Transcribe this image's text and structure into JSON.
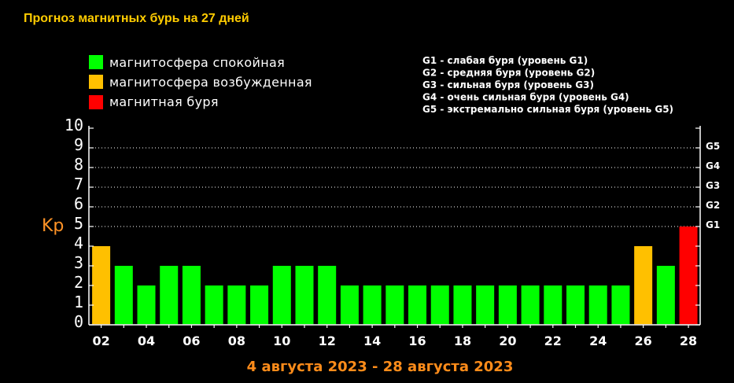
{
  "colors": {
    "title": "#ffcc00",
    "axis_title": "#ff8c1a",
    "ylabel": "#ff9326",
    "text": "#ffffff",
    "background": "#000000"
  },
  "chart_data": {
    "type": "bar",
    "title": "Прогноз магнитных бурь на 27 дней",
    "ylabel": "Kp",
    "xlabel": "4 августа 2023 - 28 августа 2023",
    "ylim": [
      0,
      10
    ],
    "y_tick_labels": [
      "0",
      "1",
      "2",
      "3",
      "4",
      "5",
      "6",
      "7",
      "8",
      "9",
      "10"
    ],
    "x": [
      2,
      3,
      4,
      5,
      6,
      7,
      8,
      9,
      10,
      11,
      12,
      13,
      14,
      15,
      16,
      17,
      18,
      19,
      20,
      21,
      22,
      23,
      24,
      25,
      26,
      27,
      28
    ],
    "x_tick_labels": [
      "02",
      "04",
      "06",
      "08",
      "10",
      "12",
      "14",
      "16",
      "18",
      "20",
      "22",
      "24",
      "26",
      "28"
    ],
    "values": [
      4,
      3,
      2,
      3,
      3,
      2,
      2,
      2,
      3,
      3,
      3,
      2,
      2,
      2,
      2,
      2,
      2,
      2,
      2,
      2,
      2,
      2,
      2,
      2,
      4,
      3,
      5
    ],
    "bar_colors": [
      "#ffc000",
      "#00ff00",
      "#00ff00",
      "#00ff00",
      "#00ff00",
      "#00ff00",
      "#00ff00",
      "#00ff00",
      "#00ff00",
      "#00ff00",
      "#00ff00",
      "#00ff00",
      "#00ff00",
      "#00ff00",
      "#00ff00",
      "#00ff00",
      "#00ff00",
      "#00ff00",
      "#00ff00",
      "#00ff00",
      "#00ff00",
      "#00ff00",
      "#00ff00",
      "#00ff00",
      "#ffc000",
      "#00ff00",
      "#ff0000"
    ],
    "legend": [
      {
        "label": "магнитосфера спокойная",
        "color": "#00ff00"
      },
      {
        "label": "магнитосфера возбужденная",
        "color": "#ffc000"
      },
      {
        "label": "магнитная буря",
        "color": "#ff0000"
      }
    ],
    "legend_position": "top-left",
    "storm_scale_notes": [
      "G1 - слабая буря (уровень G1)",
      "G2 - средняя буря (уровень G2)",
      "G3 - сильная буря (уровень G3)",
      "G4 - очень сильная буря (уровень G4)",
      "G5 - экстремально сильная буря (уровень G5)"
    ],
    "right_axis_labels": [
      {
        "label": "G1",
        "kp": 5
      },
      {
        "label": "G2",
        "kp": 6
      },
      {
        "label": "G3",
        "kp": 7
      },
      {
        "label": "G4",
        "kp": 8
      },
      {
        "label": "G5",
        "kp": 9
      }
    ],
    "grid": true,
    "gridlines_kp": [
      5,
      6,
      7,
      8,
      9
    ]
  }
}
